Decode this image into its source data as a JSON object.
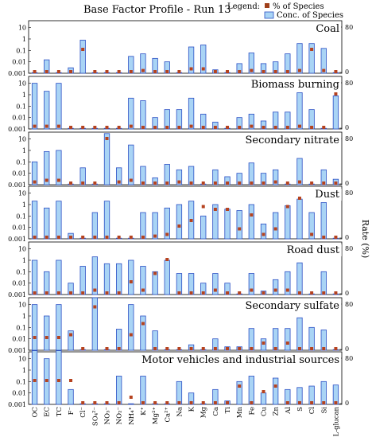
{
  "chart_data": {
    "type": "bar",
    "title": "Base Factor Profile - Run 13",
    "legend": {
      "title": "Legend:",
      "items": [
        "% of Species",
        "Conc. of Species"
      ],
      "placement": "top-right"
    },
    "y_scale": "log",
    "y_ticks": [
      "10",
      "1",
      "0.1",
      "0.01",
      "0.001"
    ],
    "y_right_label": "Rate (%)",
    "y_right_ticks": [
      "80",
      "0"
    ],
    "ylim_left": [
      0.001,
      40
    ],
    "ylim_right": [
      0,
      80
    ],
    "categories": [
      "OC",
      "EC",
      "TC",
      "F⁻",
      "Cl⁻",
      "SO₄²⁻",
      "NO₃⁻",
      "NO₂⁻",
      "NH₄⁺",
      "K⁺",
      "Mg²⁺",
      "Ca²⁺",
      "Na",
      "K",
      "Mg",
      "Ca",
      "Ti",
      "Mn",
      "Fe",
      "Cu",
      "Zn",
      "Al",
      "S",
      "Cl",
      "Si",
      "L-glucan"
    ],
    "panels": [
      {
        "name": "Coal",
        "conc": [
          0.001,
          0.015,
          0.001,
          0.003,
          0.8,
          0.001,
          0.001,
          0.001,
          0.03,
          0.05,
          0.02,
          0.01,
          0.001,
          0.2,
          0.3,
          0.002,
          0.001,
          0.007,
          0.06,
          0.007,
          0.01,
          0.05,
          0.4,
          0.4,
          0.15,
          0.001
        ],
        "pct": [
          0,
          0,
          0,
          0,
          40,
          0,
          0,
          0,
          0,
          2,
          0,
          0,
          0,
          5,
          5,
          0,
          0,
          0,
          2,
          0,
          0,
          0,
          2,
          40,
          2,
          0
        ]
      },
      {
        "name": "Biomass burning",
        "conc": [
          10,
          2,
          10,
          0.001,
          0.001,
          0.001,
          0.001,
          0.001,
          0.5,
          0.3,
          0.01,
          0.05,
          0.05,
          0.5,
          0.02,
          0.004,
          0.001,
          0.01,
          0.02,
          0.005,
          0.03,
          0.03,
          1.5,
          0.05,
          0.001,
          0.8
        ],
        "pct": [
          2,
          2,
          2,
          0,
          0,
          0,
          0,
          0,
          2,
          0,
          0,
          0,
          0,
          2,
          0,
          0,
          0,
          0,
          2,
          0,
          0,
          0,
          2,
          0,
          0,
          60
        ]
      },
      {
        "name": "Secondary nitrate",
        "conc": [
          0.1,
          0.8,
          1,
          0.001,
          0.03,
          0.001,
          30,
          0.03,
          3,
          0.04,
          0.004,
          0.06,
          0.02,
          0.04,
          0.001,
          0.02,
          0.005,
          0.01,
          0.08,
          0.01,
          0.02,
          0.001,
          0.2,
          0.001,
          0.02,
          0.003
        ],
        "pct": [
          2,
          5,
          5,
          0,
          0,
          0,
          80,
          2,
          5,
          0,
          0,
          0,
          2,
          0,
          0,
          0,
          0,
          0,
          0,
          0,
          2,
          0,
          2,
          0,
          0,
          0
        ]
      },
      {
        "name": "Dust",
        "conc": [
          2,
          0.5,
          2,
          0.003,
          0.001,
          0.2,
          2,
          0.001,
          0.001,
          0.2,
          0.2,
          0.5,
          1,
          2,
          0.1,
          1,
          0.4,
          0.3,
          1,
          0.02,
          0.2,
          0.8,
          3,
          0.2,
          1.5,
          0.001
        ],
        "pct": [
          0,
          0,
          0,
          0,
          0,
          0,
          0,
          0,
          0,
          0,
          2,
          5,
          20,
          30,
          55,
          50,
          50,
          15,
          40,
          5,
          15,
          55,
          70,
          5,
          0,
          0
        ]
      },
      {
        "name": "Road dust",
        "conc": [
          1,
          0.1,
          1,
          0.01,
          0.3,
          2,
          0.5,
          0.5,
          1,
          0.3,
          0.1,
          1,
          0.07,
          0.07,
          0.01,
          0.07,
          0.01,
          0.001,
          0.07,
          0.002,
          0.02,
          0.1,
          0.6,
          0.001,
          0.1,
          0.001
        ],
        "pct": [
          0,
          0,
          0,
          0,
          0,
          5,
          0,
          0,
          20,
          5,
          35,
          60,
          0,
          0,
          0,
          5,
          0,
          0,
          5,
          0,
          5,
          5,
          0,
          0,
          0,
          0
        ]
      },
      {
        "name": "Secondary sulfate",
        "conc": [
          10,
          1,
          10,
          0.05,
          0.001,
          40,
          0.001,
          0.07,
          10,
          1,
          0.05,
          0.001,
          0.001,
          0.003,
          0.001,
          0.01,
          0.002,
          0.002,
          0.08,
          0.01,
          0.08,
          0.08,
          0.7,
          0.1,
          0.06,
          0.001
        ],
        "pct": [
          20,
          20,
          20,
          25,
          0,
          75,
          0,
          0,
          25,
          45,
          0,
          0,
          0,
          0,
          0,
          0,
          0,
          0,
          0,
          10,
          0,
          10,
          0,
          0,
          0,
          0
        ]
      },
      {
        "name": "Motor vehicles and industrial sources",
        "conc": [
          50,
          10,
          50,
          0.02,
          0.001,
          0.001,
          0.001,
          0.3,
          0.001,
          0.3,
          0.001,
          0.001,
          0.1,
          0.01,
          0.001,
          0.02,
          0.002,
          0.1,
          0.3,
          0.01,
          0.2,
          0.02,
          0.03,
          0.04,
          0.1,
          0.05
        ],
        "pct": [
          40,
          40,
          40,
          40,
          0,
          0,
          0,
          0,
          10,
          0,
          0,
          0,
          0,
          0,
          0,
          0,
          0,
          30,
          0,
          20,
          30,
          0,
          0,
          0,
          0,
          0
        ]
      }
    ]
  }
}
